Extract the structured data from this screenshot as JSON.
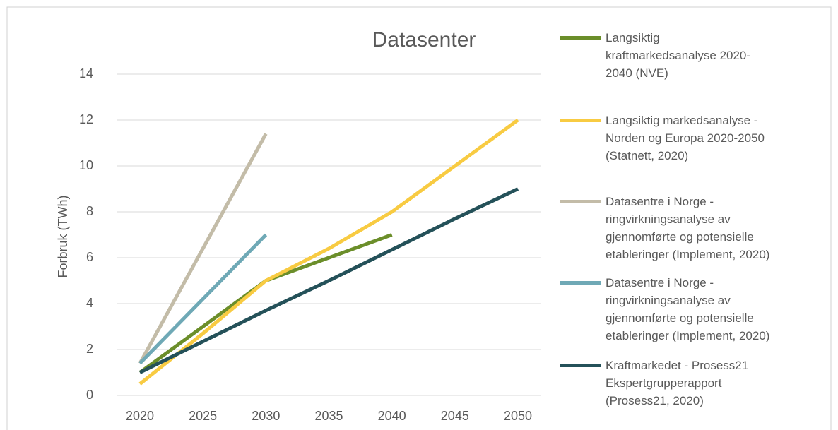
{
  "chart_data": {
    "type": "line",
    "title": "Datasenter",
    "y_label": "Forbruk (TWh)",
    "x": [
      2020,
      2025,
      2030,
      2035,
      2040,
      2045,
      2050
    ],
    "xlim": [
      2020,
      2050
    ],
    "xticks": [
      2020,
      2025,
      2030,
      2035,
      2040,
      2045,
      2050
    ],
    "ylim": [
      0,
      14
    ],
    "yticks": [
      0,
      2,
      4,
      6,
      8,
      10,
      12,
      14
    ],
    "grid": true,
    "legend": "right",
    "series": [
      {
        "name": "Langsiktig kraftmarkedsanalyse 2020-2040 (NVE)",
        "color": "#6b8e2a",
        "values": [
          1,
          3,
          5,
          6,
          7,
          null,
          null
        ]
      },
      {
        "name": "Langsiktig markedsanalyse - Norden og Europa 2020-2050 (Statnett, 2020)",
        "color": "#f8cb42",
        "values": [
          0.5,
          2.7,
          5,
          6.4,
          8,
          10,
          12
        ]
      },
      {
        "name": "Datasentre i Norge - ringvirkningsanalyse av gjennomførte og potensielle etableringer (Implement, 2020)",
        "color": "#c3bca8",
        "values": [
          1.4,
          6.4,
          11.4,
          null,
          null,
          null,
          null
        ]
      },
      {
        "name": "Datasentre i Norge - ringvirkningsanalyse av gjennomførte og potensielle etableringer (Implement, 2020)",
        "color": "#6fa9b6",
        "values": [
          1.4,
          4.2,
          7,
          null,
          null,
          null,
          null
        ]
      },
      {
        "name": "Kraftmarkedet - Prosess21 Ekspertgrupperapport (Prosess21, 2020)",
        "color": "#245159",
        "values": [
          1,
          2.35,
          3.7,
          5,
          6.35,
          7.7,
          9
        ]
      }
    ]
  }
}
